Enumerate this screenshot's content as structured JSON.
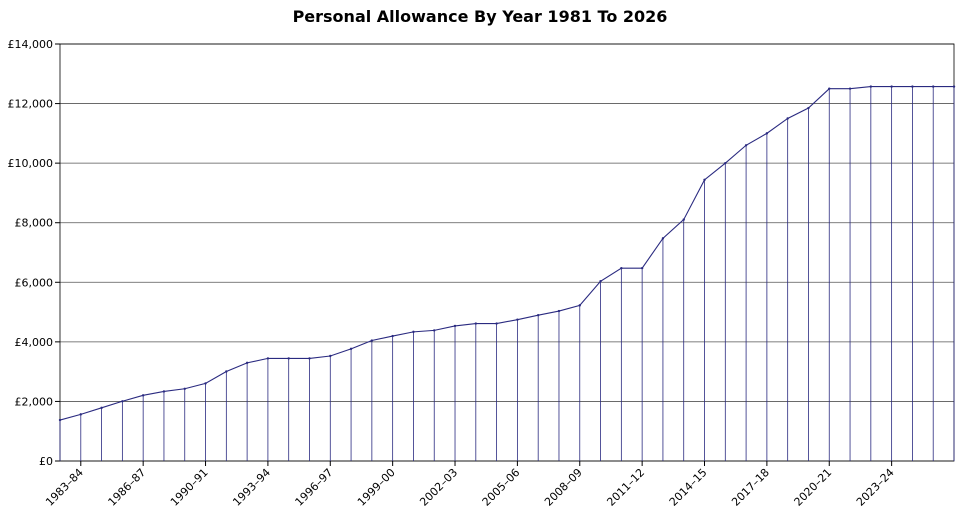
{
  "chart_data": {
    "type": "area",
    "title": "Personal Allowance By Year 1981 To 2026",
    "xlabel": "",
    "ylabel": "",
    "ylim": [
      0,
      14000
    ],
    "yticks": [
      "£0",
      "£2,000",
      "£4,000",
      "£6,000",
      "£8,000",
      "£10,000",
      "£12,000",
      "£14,000"
    ],
    "ytick_values": [
      0,
      2000,
      4000,
      6000,
      8000,
      10000,
      12000,
      14000
    ],
    "xtick_labels": [
      "1983–84",
      "1986–87",
      "1990–91",
      "1993–94",
      "1996–97",
      "1999–00",
      "2002–03",
      "2005–06",
      "2008–09",
      "2011–12",
      "2014–15",
      "2017–18",
      "2020–21",
      "2023–24"
    ],
    "grid": "horizontal",
    "colors": {
      "line": "#2a2a80",
      "grid": "#555555",
      "axis": "#000000"
    },
    "values": [
      1375,
      1565,
      1785,
      2005,
      2205,
      2335,
      2425,
      2605,
      3005,
      3295,
      3445,
      3445,
      3445,
      3525,
      3765,
      4045,
      4195,
      4335,
      4385,
      4535,
      4615,
      4615,
      4745,
      4895,
      5035,
      5225,
      6035,
      6475,
      6475,
      7475,
      8105,
      9440,
      10000,
      10600,
      11000,
      11500,
      11850,
      12500,
      12500,
      12570,
      12570,
      12570,
      12570,
      12570
    ]
  }
}
